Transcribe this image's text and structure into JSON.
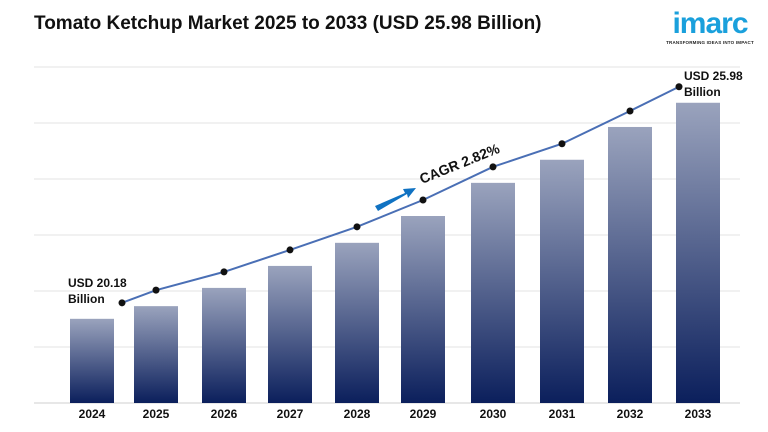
{
  "chart_data": {
    "type": "bar",
    "title": "Tomato Ketchup Market 2025 to 2033 (USD 25.98 Billion)",
    "categories": [
      "2024",
      "2025",
      "2026",
      "2027",
      "2028",
      "2029",
      "2030",
      "2031",
      "2032",
      "2033"
    ],
    "values": [
      20.18,
      20.52,
      21.01,
      21.6,
      22.22,
      22.94,
      23.83,
      24.45,
      25.33,
      25.98
    ],
    "unit": "USD Billion",
    "ylim": [
      17.92,
      26.94
    ],
    "grid": true,
    "overlay_line": true,
    "annotations": {
      "start_line1": "USD 20.18",
      "start_line2": "Billion",
      "end_line1": "USD 25.98",
      "end_line2": "Billion",
      "cagr": "CAGR 2.82%"
    },
    "colors": {
      "bar_top": "#9aa3bd",
      "bar_bottom": "#0b1f5c",
      "line": "#4a6fb5",
      "arrow": "#1072c2",
      "grid": "#e3e3e3"
    }
  },
  "logo": {
    "word": "imarc",
    "tagline": "TRANSFORMING IDEAS INTO IMPACT"
  }
}
